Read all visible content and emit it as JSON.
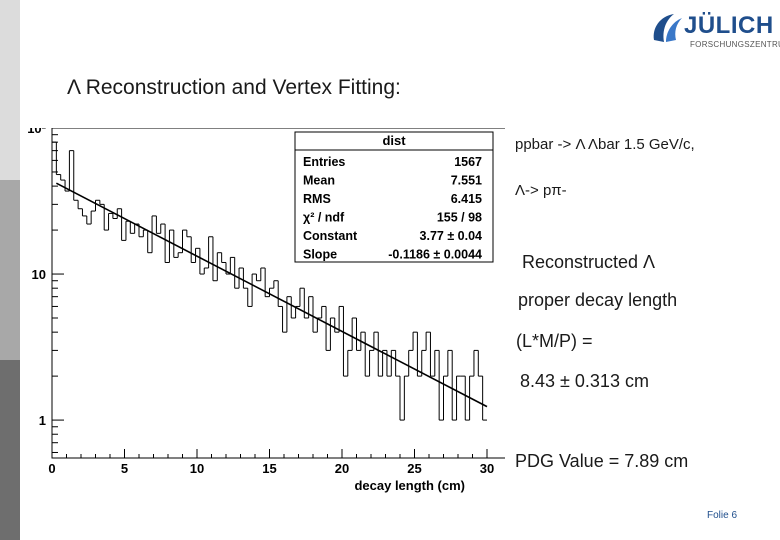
{
  "header": {
    "logo_text": "JÜLICH",
    "logo_subtext": "FORSCHUNGSZENTRUM",
    "title": "Λ Reconstruction and Vertex Fitting:"
  },
  "stats_box": {
    "title": "dist",
    "rows": [
      {
        "label": "Entries",
        "value": "1567"
      },
      {
        "label": "Mean",
        "value": "7.551"
      },
      {
        "label": "RMS",
        "value": "6.415"
      },
      {
        "label": "χ² / ndf",
        "value": "155 / 98"
      },
      {
        "label": "Constant",
        "value": "3.77 ± 0.04"
      },
      {
        "label": "Slope",
        "value": "-0.1186 ± 0.0044"
      }
    ]
  },
  "right_text": {
    "process": "ppbar -> Λ Λbar  1.5 GeV/c,",
    "decay": "Λ-> pπ-",
    "reconstructed": "Reconstructed  Λ",
    "proper_decay": "proper decay length",
    "formula": "(L*M/P) =",
    "value": "8.43 ± 0.313 cm",
    "pdg": "PDG Value = 7.89 cm"
  },
  "footer": {
    "page": "Folie 6"
  },
  "chart_data": {
    "type": "histogram",
    "xlabel": "decay length (cm)",
    "ylabel": "",
    "xlim": [
      0,
      30
    ],
    "ylim_log": [
      0.55,
      100
    ],
    "log_y": true,
    "x_ticks": [
      "0",
      "5",
      "10",
      "15",
      "20",
      "25",
      "30"
    ],
    "y_ticks": [
      {
        "v": 1,
        "label": "1"
      },
      {
        "v": 10,
        "label": "10"
      },
      {
        "v": 100,
        "label": "10²"
      }
    ],
    "bin_width": 0.3,
    "values": [
      80,
      48,
      44,
      37,
      70,
      32,
      28,
      25,
      22,
      27,
      32,
      30,
      20,
      26,
      24,
      28,
      17,
      23,
      19,
      22,
      18,
      20,
      14,
      25,
      19,
      22,
      12,
      20,
      13,
      14,
      20,
      18,
      12,
      15,
      10,
      11,
      18,
      9,
      14,
      12,
      10,
      13,
      8,
      11,
      8,
      6,
      10,
      9,
      11,
      7,
      8,
      9,
      6,
      4,
      7,
      5,
      6,
      8,
      5,
      7,
      4,
      5,
      6,
      3,
      5,
      4,
      6,
      2,
      3,
      5,
      3,
      4,
      2,
      3,
      4,
      2,
      3,
      2,
      3,
      2,
      1,
      2,
      3,
      4,
      2,
      3,
      4,
      2,
      3,
      1,
      2,
      3,
      1,
      2,
      2,
      1,
      2,
      3,
      2,
      1
    ],
    "fit": {
      "constant": 3.77,
      "slope": -0.1186
    },
    "series": [
      {
        "name": "dist"
      }
    ]
  }
}
